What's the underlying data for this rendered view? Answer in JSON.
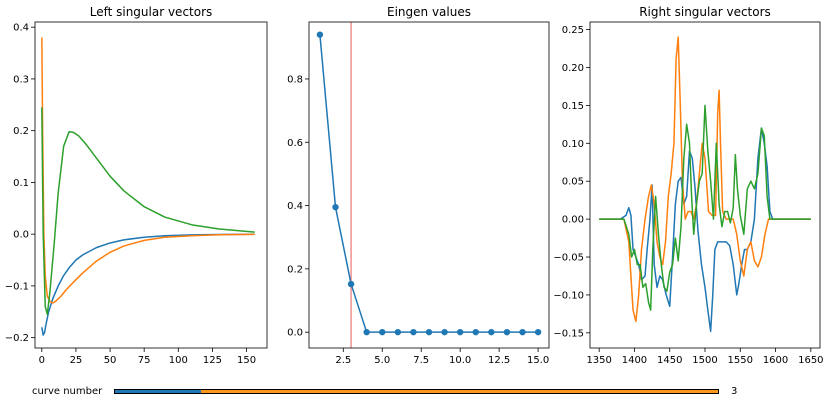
{
  "colors": {
    "c1": "#1f77b4",
    "c2": "#ff7f0e",
    "c3": "#2ca02c",
    "vline": "#f08080",
    "slider_track": "#f8961d"
  },
  "chart_data": [
    {
      "type": "line",
      "title": "Left singular vectors",
      "xlim": [
        -5,
        165
      ],
      "ylim": [
        -0.22,
        0.41
      ],
      "xticks": [
        0,
        25,
        50,
        75,
        100,
        125,
        150
      ],
      "yticks": [
        -0.2,
        -0.1,
        0.0,
        0.1,
        0.2,
        0.3,
        0.4
      ],
      "xtick_labels": [
        "0",
        "25",
        "50",
        "75",
        "100",
        "125",
        "150"
      ],
      "ytick_labels": [
        "−0.2",
        "−0.1",
        "0.0",
        "0.1",
        "0.2",
        "0.3",
        "0.4"
      ],
      "series": [
        {
          "color": "#1f77b4",
          "x": [
            0,
            1,
            2,
            3,
            5,
            8,
            12,
            16,
            20,
            25,
            30,
            40,
            50,
            60,
            75,
            90,
            110,
            130,
            156
          ],
          "y": [
            -0.18,
            -0.195,
            -0.19,
            -0.175,
            -0.15,
            -0.125,
            -0.1,
            -0.08,
            -0.065,
            -0.05,
            -0.04,
            -0.026,
            -0.017,
            -0.011,
            -0.006,
            -0.003,
            -0.0015,
            -0.0007,
            -0.0003
          ]
        },
        {
          "color": "#ff7f0e",
          "x": [
            0,
            0.6,
            1.5,
            2.5,
            4,
            6,
            8,
            10,
            14,
            18,
            25,
            30,
            40,
            50,
            60,
            75,
            90,
            110,
            130,
            156
          ],
          "y": [
            0.38,
            0.2,
            0.0,
            -0.08,
            -0.12,
            -0.13,
            -0.133,
            -0.13,
            -0.12,
            -0.107,
            -0.088,
            -0.075,
            -0.052,
            -0.035,
            -0.023,
            -0.012,
            -0.006,
            -0.003,
            -0.0012,
            -0.0004
          ]
        },
        {
          "color": "#2ca02c",
          "x": [
            0,
            1,
            2.5,
            4,
            6,
            9,
            12,
            16,
            20,
            23,
            27,
            32,
            40,
            50,
            60,
            75,
            90,
            110,
            130,
            156
          ],
          "y": [
            0.245,
            0.0,
            -0.14,
            -0.155,
            -0.11,
            -0.02,
            0.08,
            0.17,
            0.198,
            0.197,
            0.19,
            0.175,
            0.147,
            0.112,
            0.084,
            0.053,
            0.033,
            0.018,
            0.01,
            0.004
          ]
        }
      ]
    },
    {
      "type": "line",
      "title": "Eingen values",
      "xlim": [
        0.3,
        15.7
      ],
      "ylim": [
        -0.05,
        0.98
      ],
      "xticks": [
        2.5,
        5.0,
        7.5,
        10.0,
        12.5,
        15.0
      ],
      "yticks": [
        0.0,
        0.2,
        0.4,
        0.6,
        0.8
      ],
      "xtick_labels": [
        "2.5",
        "5.0",
        "7.5",
        "10.0",
        "12.5",
        "15.0"
      ],
      "ytick_labels": [
        "0.0",
        "0.2",
        "0.4",
        "0.6",
        "0.8"
      ],
      "vline": 3,
      "series": [
        {
          "color": "#1f77b4",
          "markers": true,
          "x": [
            1,
            2,
            3,
            4,
            5,
            6,
            7,
            8,
            9,
            10,
            11,
            12,
            13,
            14,
            15
          ],
          "y": [
            0.94,
            0.395,
            0.152,
            0.0,
            0.0,
            0.0,
            0.0,
            0.0,
            0.0,
            0.0,
            0.0,
            0.0,
            0.0,
            0.0,
            0.0
          ]
        }
      ]
    },
    {
      "type": "line",
      "title": "Right singular vectors",
      "xlim": [
        1337,
        1663
      ],
      "ylim": [
        -0.17,
        0.26
      ],
      "xticks": [
        1350,
        1400,
        1450,
        1500,
        1550,
        1600,
        1650
      ],
      "yticks": [
        -0.15,
        -0.1,
        -0.05,
        0.0,
        0.05,
        0.1,
        0.15,
        0.2,
        0.25
      ],
      "xtick_labels": [
        "1350",
        "1400",
        "1450",
        "1500",
        "1550",
        "1600",
        "1650"
      ],
      "ytick_labels": [
        "−0.15",
        "−0.10",
        "−0.05",
        "0.00",
        "0.05",
        "0.10",
        "0.15",
        "0.20",
        "0.25"
      ],
      "series": [
        {
          "color": "#1f77b4",
          "x": [
            1350,
            1380,
            1388,
            1392,
            1395,
            1398,
            1402,
            1406,
            1410,
            1415,
            1418,
            1422,
            1425,
            1428,
            1432,
            1436,
            1440,
            1445,
            1450,
            1454,
            1458,
            1462,
            1466,
            1470,
            1474,
            1478,
            1482,
            1486,
            1490,
            1495,
            1500,
            1504,
            1508,
            1511,
            1514,
            1518,
            1522,
            1526,
            1530,
            1535,
            1540,
            1545,
            1548,
            1552,
            1556,
            1560,
            1565,
            1570,
            1575,
            1580,
            1584,
            1588,
            1592,
            1596,
            1600,
            1650
          ],
          "y": [
            0,
            0,
            0.005,
            0.015,
            0.005,
            -0.04,
            -0.05,
            -0.06,
            -0.08,
            -0.075,
            -0.04,
            0.0,
            0.045,
            -0.06,
            -0.09,
            -0.075,
            -0.08,
            -0.1,
            -0.115,
            -0.05,
            0.02,
            0.05,
            0.055,
            0.02,
            0.03,
            0.09,
            0.08,
            0.04,
            -0.015,
            -0.06,
            -0.09,
            -0.12,
            -0.148,
            -0.1,
            -0.04,
            -0.03,
            -0.03,
            -0.03,
            -0.03,
            -0.035,
            -0.06,
            -0.1,
            -0.085,
            -0.06,
            -0.04,
            -0.04,
            -0.03,
            0.0,
            0.08,
            0.12,
            0.1,
            0.07,
            0.01,
            0.0,
            0.0,
            0.0
          ]
        },
        {
          "color": "#ff7f0e",
          "x": [
            1350,
            1385,
            1392,
            1398,
            1402,
            1406,
            1410,
            1415,
            1420,
            1424,
            1428,
            1432,
            1436,
            1440,
            1444,
            1448,
            1452,
            1456,
            1459,
            1462,
            1465,
            1468,
            1472,
            1476,
            1480,
            1484,
            1488,
            1492,
            1496,
            1500,
            1505,
            1510,
            1515,
            1518,
            1520,
            1522,
            1525,
            1530,
            1535,
            1540,
            1545,
            1550,
            1555,
            1560,
            1565,
            1570,
            1575,
            1580,
            1585,
            1590,
            1596,
            1600,
            1650
          ],
          "y": [
            0,
            0,
            -0.03,
            -0.12,
            -0.135,
            -0.1,
            -0.04,
            0.0,
            0.03,
            0.045,
            0.02,
            -0.03,
            -0.05,
            -0.06,
            -0.03,
            0.03,
            0.06,
            0.1,
            0.21,
            0.24,
            0.15,
            0.05,
            0.0,
            0.01,
            0.01,
            0.0,
            0.02,
            0.06,
            0.1,
            0.08,
            0.01,
            0.005,
            0.005,
            0.14,
            0.17,
            0.1,
            0.01,
            0.0,
            0.0,
            0.0,
            -0.02,
            -0.055,
            -0.075,
            -0.04,
            -0.03,
            -0.055,
            -0.063,
            -0.05,
            -0.02,
            0.0,
            0.0,
            0.0,
            0.0
          ]
        },
        {
          "color": "#2ca02c",
          "x": [
            1350,
            1385,
            1392,
            1396,
            1400,
            1404,
            1408,
            1412,
            1416,
            1420,
            1423,
            1426,
            1430,
            1434,
            1438,
            1442,
            1446,
            1450,
            1454,
            1458,
            1462,
            1466,
            1470,
            1474,
            1478,
            1481,
            1484,
            1488,
            1492,
            1496,
            1500,
            1504,
            1508,
            1512,
            1516,
            1520,
            1524,
            1528,
            1532,
            1536,
            1540,
            1543,
            1546,
            1550,
            1555,
            1560,
            1565,
            1570,
            1575,
            1580,
            1584,
            1588,
            1592,
            1596,
            1650
          ],
          "y": [
            0,
            0,
            -0.02,
            -0.05,
            -0.04,
            -0.06,
            -0.06,
            -0.09,
            -0.085,
            -0.11,
            -0.12,
            -0.04,
            0.03,
            -0.02,
            -0.06,
            -0.09,
            -0.095,
            -0.07,
            -0.06,
            -0.025,
            -0.055,
            -0.01,
            0.08,
            0.125,
            0.1,
            0.03,
            -0.02,
            0.02,
            0.05,
            0.06,
            0.15,
            0.09,
            0.05,
            0.0,
            0.1,
            0.02,
            -0.01,
            0.01,
            0.01,
            -0.005,
            0.015,
            0.085,
            0.04,
            0.005,
            -0.02,
            0.04,
            0.05,
            0.04,
            0.06,
            0.12,
            0.11,
            0.03,
            0.0,
            0.0,
            0.0
          ]
        }
      ]
    }
  ],
  "slider": {
    "label": "curve number",
    "value": "3",
    "fraction": 0.142
  }
}
